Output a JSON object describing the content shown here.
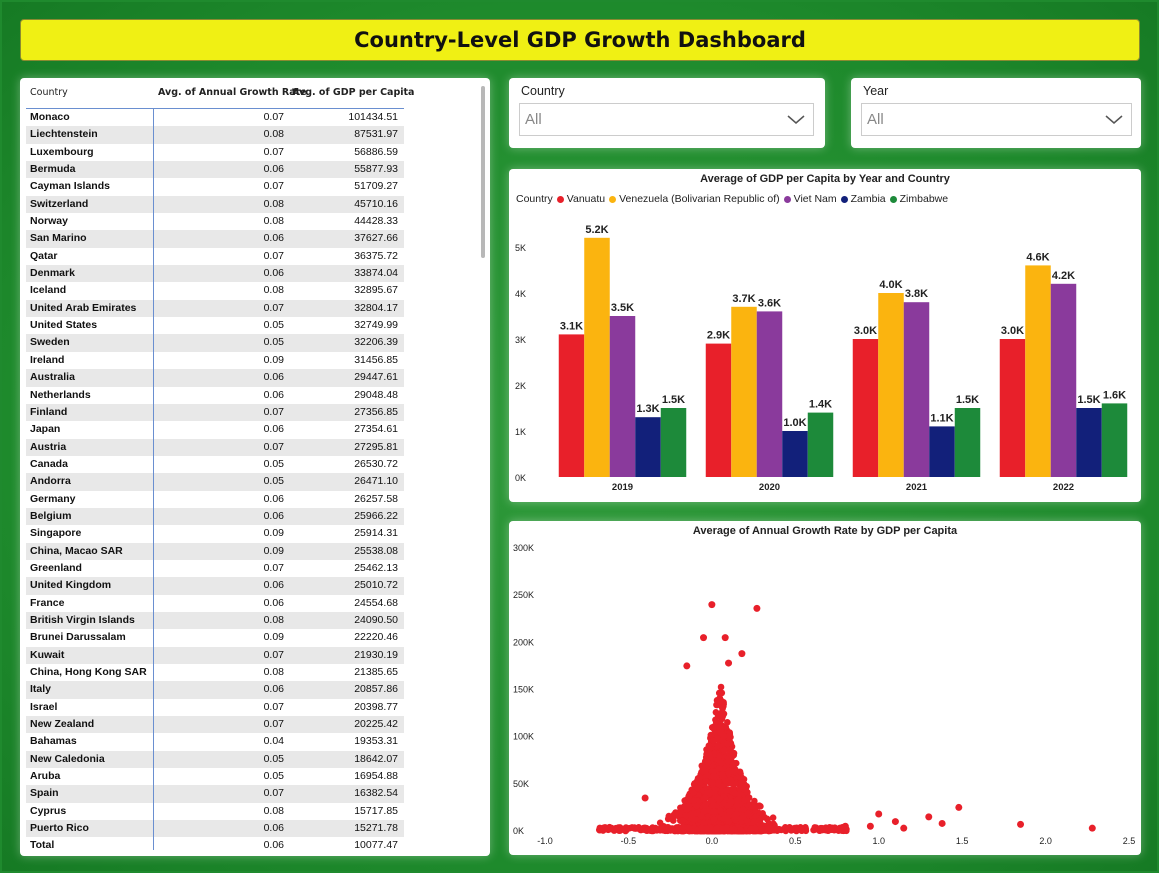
{
  "title": "Country-Level GDP Growth Dashboard",
  "table": {
    "headers": [
      "Country",
      "Avg. of Annual Growth Rate",
      "Avg. of GDP per Capita"
    ],
    "rows": [
      [
        "Monaco",
        "0.07",
        "101434.51"
      ],
      [
        "Liechtenstein",
        "0.08",
        "87531.97"
      ],
      [
        "Luxembourg",
        "0.07",
        "56886.59"
      ],
      [
        "Bermuda",
        "0.06",
        "55877.93"
      ],
      [
        "Cayman Islands",
        "0.07",
        "51709.27"
      ],
      [
        "Switzerland",
        "0.08",
        "45710.16"
      ],
      [
        "Norway",
        "0.08",
        "44428.33"
      ],
      [
        "San Marino",
        "0.06",
        "37627.66"
      ],
      [
        "Qatar",
        "0.07",
        "36375.72"
      ],
      [
        "Denmark",
        "0.06",
        "33874.04"
      ],
      [
        "Iceland",
        "0.08",
        "32895.67"
      ],
      [
        "United Arab Emirates",
        "0.07",
        "32804.17"
      ],
      [
        "United States",
        "0.05",
        "32749.99"
      ],
      [
        "Sweden",
        "0.05",
        "32206.39"
      ],
      [
        "Ireland",
        "0.09",
        "31456.85"
      ],
      [
        "Australia",
        "0.06",
        "29447.61"
      ],
      [
        "Netherlands",
        "0.06",
        "29048.48"
      ],
      [
        "Finland",
        "0.07",
        "27356.85"
      ],
      [
        "Japan",
        "0.06",
        "27354.61"
      ],
      [
        "Austria",
        "0.07",
        "27295.81"
      ],
      [
        "Canada",
        "0.05",
        "26530.72"
      ],
      [
        "Andorra",
        "0.05",
        "26471.10"
      ],
      [
        "Germany",
        "0.06",
        "26257.58"
      ],
      [
        "Belgium",
        "0.06",
        "25966.22"
      ],
      [
        "Singapore",
        "0.09",
        "25914.31"
      ],
      [
        "China, Macao SAR",
        "0.09",
        "25538.08"
      ],
      [
        "Greenland",
        "0.07",
        "25462.13"
      ],
      [
        "United Kingdom",
        "0.06",
        "25010.72"
      ],
      [
        "France",
        "0.06",
        "24554.68"
      ],
      [
        "British Virgin Islands",
        "0.08",
        "24090.50"
      ],
      [
        "Brunei Darussalam",
        "0.09",
        "22220.46"
      ],
      [
        "Kuwait",
        "0.07",
        "21930.19"
      ],
      [
        "China, Hong Kong SAR",
        "0.08",
        "21385.65"
      ],
      [
        "Italy",
        "0.06",
        "20857.86"
      ],
      [
        "Israel",
        "0.07",
        "20398.77"
      ],
      [
        "New Zealand",
        "0.07",
        "20225.42"
      ],
      [
        "Bahamas",
        "0.04",
        "19353.31"
      ],
      [
        "New Caledonia",
        "0.05",
        "18642.07"
      ],
      [
        "Aruba",
        "0.05",
        "16954.88"
      ],
      [
        "Spain",
        "0.07",
        "16382.54"
      ],
      [
        "Cyprus",
        "0.08",
        "15717.85"
      ],
      [
        "Puerto Rico",
        "0.06",
        "15271.78"
      ]
    ],
    "total": [
      "Total",
      "0.06",
      "10077.47"
    ]
  },
  "slicers": {
    "country": {
      "label": "Country",
      "value": "All"
    },
    "year": {
      "label": "Year",
      "value": "All"
    }
  },
  "colors": {
    "background": "#1f8a2e",
    "title_bar": "#f0f014",
    "Vanuatu": "#e8202a",
    "Venezuela": "#fbb40f",
    "Viet Nam": "#8a3a9c",
    "Zambia": "#12207a",
    "Zimbabwe": "#1d8a3a"
  },
  "chart_data": [
    {
      "type": "bar",
      "title": "Average of GDP per Capita by Year and Country",
      "legend_title": "Country",
      "legend_position": "top-left",
      "categories": [
        "2019",
        "2020",
        "2021",
        "2022"
      ],
      "series": [
        {
          "name": "Vanuatu",
          "values": [
            3100,
            2900,
            3000,
            3000
          ],
          "labels": [
            "3.1K",
            "2.9K",
            "3.0K",
            "3.0K"
          ]
        },
        {
          "name": "Venezuela (Bolivarian Republic of)",
          "values": [
            5200,
            3700,
            4000,
            4600
          ],
          "labels": [
            "5.2K",
            "3.7K",
            "4.0K",
            "4.6K"
          ]
        },
        {
          "name": "Viet Nam",
          "values": [
            3500,
            3600,
            3800,
            4200
          ],
          "labels": [
            "3.5K",
            "3.6K",
            "3.8K",
            "4.2K"
          ]
        },
        {
          "name": "Zambia",
          "values": [
            1300,
            1000,
            1100,
            1500
          ],
          "labels": [
            "1.3K",
            "1.0K",
            "1.1K",
            "1.5K"
          ]
        },
        {
          "name": "Zimbabwe",
          "values": [
            1500,
            1400,
            1500,
            1600
          ],
          "labels": [
            "1.5K",
            "1.4K",
            "1.5K",
            "1.6K"
          ]
        }
      ],
      "ylim": [
        0,
        5500
      ],
      "yticks": [
        "0K",
        "1K",
        "2K",
        "3K",
        "4K",
        "5K"
      ],
      "grid": false
    },
    {
      "type": "scatter",
      "title": "Average of Annual Growth Rate by GDP per Capita",
      "xlim": [
        -1.0,
        2.5
      ],
      "ylim": [
        0,
        300000
      ],
      "xticks": [
        "-1.0",
        "-0.5",
        "0.0",
        "0.5",
        "1.0",
        "1.5",
        "2.0",
        "2.5"
      ],
      "yticks": [
        "0K",
        "50K",
        "100K",
        "150K",
        "200K",
        "250K",
        "300K"
      ],
      "color": "#e8202a",
      "points_outliers": [
        [
          0.0,
          240000
        ],
        [
          0.27,
          236000
        ],
        [
          -0.05,
          205000
        ],
        [
          0.08,
          205000
        ],
        [
          0.18,
          188000
        ],
        [
          -0.15,
          175000
        ],
        [
          0.1,
          178000
        ],
        [
          -0.4,
          35000
        ],
        [
          0.8,
          5000
        ],
        [
          0.95,
          5000
        ],
        [
          1.0,
          18000
        ],
        [
          1.1,
          10000
        ],
        [
          1.15,
          3000
        ],
        [
          1.3,
          15000
        ],
        [
          1.38,
          8000
        ],
        [
          1.48,
          25000
        ],
        [
          1.85,
          7000
        ],
        [
          2.28,
          3000
        ],
        [
          -0.65,
          3000
        ]
      ],
      "grid": false
    }
  ]
}
